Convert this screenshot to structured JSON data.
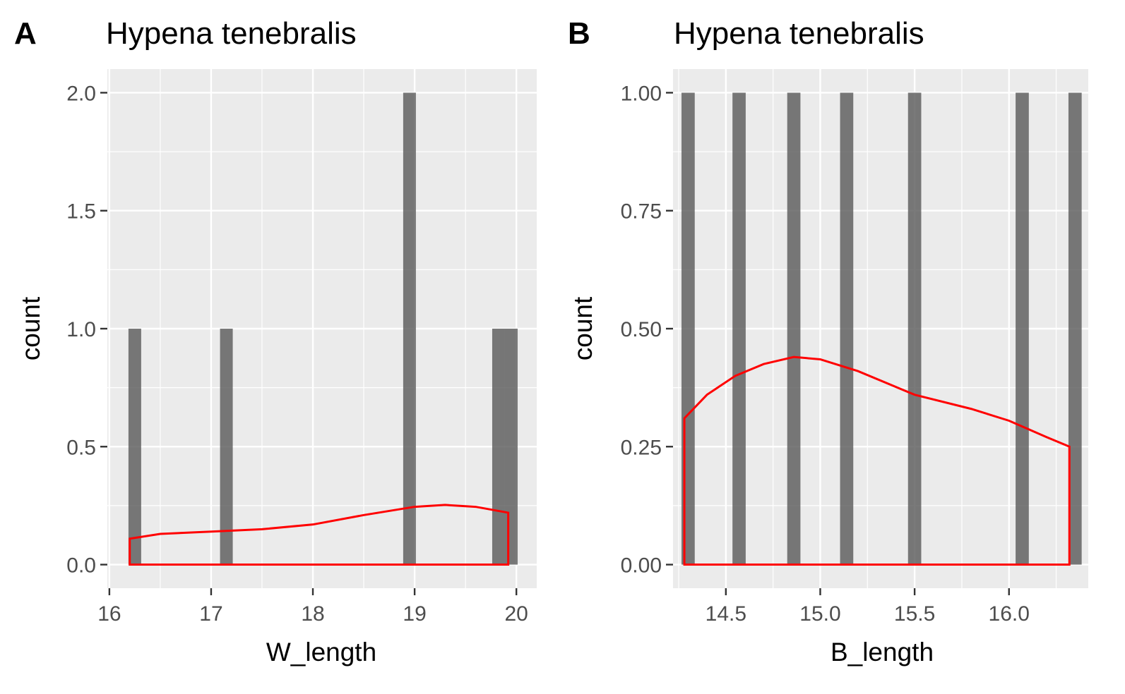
{
  "chart_data": [
    {
      "tag": "A",
      "type": "bar",
      "title": "Hypena tenebralis",
      "xlabel": "W_length",
      "ylabel": "count",
      "xlim": [
        15.98,
        20.2
      ],
      "ylim": [
        -0.1,
        2.1
      ],
      "xticks": [
        16,
        17,
        18,
        19,
        20
      ],
      "xtick_labels": [
        "16",
        "17",
        "18",
        "19",
        "20"
      ],
      "yticks": [
        0,
        0.5,
        1,
        1.5,
        2
      ],
      "ytick_labels": [
        "0.0",
        "0.5",
        "1.0",
        "1.5",
        "2.0"
      ],
      "xminor": [
        16.5,
        17.5,
        18.5,
        19.5
      ],
      "yminor": [
        0.25,
        0.75,
        1.25,
        1.75
      ],
      "bin_width": 0.125,
      "bars": [
        {
          "x": 16.25,
          "count": 1
        },
        {
          "x": 17.15,
          "count": 1
        },
        {
          "x": 18.95,
          "count": 2
        },
        {
          "x": 19.825,
          "count": 1
        },
        {
          "x": 19.95,
          "count": 1
        }
      ],
      "density": {
        "x": [
          16.2,
          16.5,
          17.0,
          17.5,
          18.0,
          18.5,
          19.0,
          19.3,
          19.6,
          19.92
        ],
        "y": [
          0.11,
          0.13,
          0.14,
          0.15,
          0.17,
          0.21,
          0.245,
          0.253,
          0.245,
          0.22
        ]
      },
      "grid": true
    },
    {
      "tag": "B",
      "type": "bar",
      "title": "Hypena tenebralis",
      "xlabel": "B_length",
      "ylabel": "count",
      "xlim": [
        14.22,
        16.42
      ],
      "ylim": [
        -0.05,
        1.05
      ],
      "xticks": [
        14.5,
        15.0,
        15.5,
        16.0
      ],
      "xtick_labels": [
        "14.5",
        "15.0",
        "15.5",
        "16.0"
      ],
      "yticks": [
        0,
        0.25,
        0.5,
        0.75,
        1.0
      ],
      "ytick_labels": [
        "0.00",
        "0.25",
        "0.50",
        "0.75",
        "1.00"
      ],
      "xminor": [
        14.25,
        14.75,
        15.25,
        15.75,
        16.25
      ],
      "yminor": [
        0.125,
        0.375,
        0.625,
        0.875
      ],
      "bin_width": 0.07,
      "bars": [
        {
          "x": 14.3,
          "count": 1
        },
        {
          "x": 14.57,
          "count": 1
        },
        {
          "x": 14.86,
          "count": 1
        },
        {
          "x": 15.14,
          "count": 1
        },
        {
          "x": 15.5,
          "count": 1
        },
        {
          "x": 16.07,
          "count": 1
        },
        {
          "x": 16.35,
          "count": 1
        }
      ],
      "density": {
        "x": [
          14.28,
          14.4,
          14.55,
          14.7,
          14.86,
          15.0,
          15.2,
          15.5,
          15.8,
          16.0,
          16.2,
          16.32
        ],
        "y": [
          0.31,
          0.36,
          0.4,
          0.425,
          0.44,
          0.435,
          0.41,
          0.36,
          0.33,
          0.305,
          0.27,
          0.25
        ]
      },
      "grid": true
    }
  ]
}
